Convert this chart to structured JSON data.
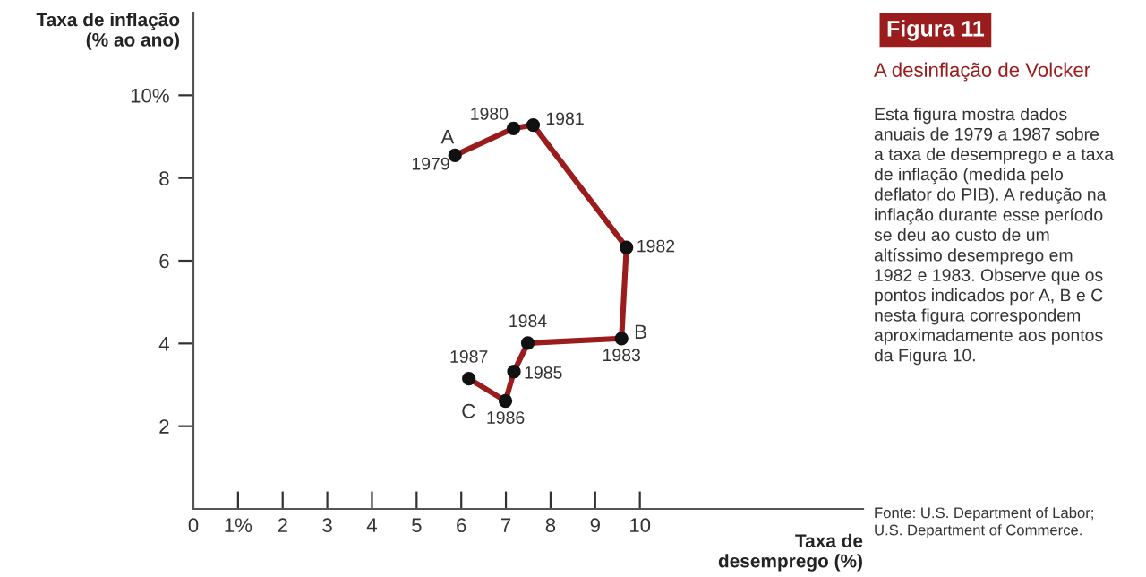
{
  "chart_data": {
    "type": "line",
    "title": "Figura 11",
    "subtitle": "A desinflação de Volcker",
    "xlabel": "Taxa de\ndesemprego (%)",
    "ylabel": "Taxa de inflação\n(% ao ano)",
    "x": [
      5.86,
      7.17,
      7.61,
      9.7,
      9.59,
      7.49,
      7.18,
      6.99,
      6.17
    ],
    "series": [
      {
        "color": "#9b1c1c",
        "values": [
          8.55,
          9.2,
          9.28,
          6.32,
          4.12,
          4.01,
          3.32,
          2.61,
          3.15
        ]
      }
    ],
    "marker": "circle",
    "line_style": "solid",
    "grid": false,
    "legend": false,
    "xlim": [
      0,
      15
    ],
    "ylim": [
      0,
      12
    ],
    "xticks": [
      0,
      {
        "value": 1,
        "label": "1%"
      },
      2,
      3,
      4,
      5,
      6,
      7,
      8,
      9,
      10
    ],
    "yticks": [
      2,
      4,
      6,
      8,
      {
        "value": 10,
        "label": "10%"
      }
    ],
    "annotations": [
      "Esta figura mostra dados\nanuais de 1979 a 1987 sobre\na taxa de desemprego e a taxa\nde inflação (medida pelo\ndeflator do PIB). A redução na\ninflação durante esse período\nse deu ao custo de um\naltíssimo desemprego em\n1982 e 1983. Observe que os\npontos indicados por A, B e C\nnesta figura correspondem\naproximadamente aos pontos\nda Figura 10.",
      "Fonte: U.S. Department of Labor;\nU.S. Department of Commerce.",
      {
        "text": "1979",
        "x": 5.86,
        "y": 8.55
      },
      {
        "text": "1980",
        "x": 7.17,
        "y": 9.2
      },
      {
        "text": "1981",
        "x": 7.61,
        "y": 9.28
      },
      {
        "text": "1982",
        "x": 9.7,
        "y": 6.32
      },
      {
        "text": "1983",
        "x": 9.59,
        "y": 4.12
      },
      {
        "text": "1984",
        "x": 7.49,
        "y": 4.01
      },
      {
        "text": "1985",
        "x": 7.18,
        "y": 3.32
      },
      {
        "text": "1986",
        "x": 6.99,
        "y": 2.61
      },
      {
        "text": "1987",
        "x": 6.17,
        "y": 3.15
      },
      {
        "text": "A",
        "x": 5.86,
        "y": 8.55
      },
      {
        "text": "B",
        "x": 9.59,
        "y": 4.12
      },
      {
        "text": "C",
        "x": 6.99,
        "y": 2.61
      }
    ]
  }
}
